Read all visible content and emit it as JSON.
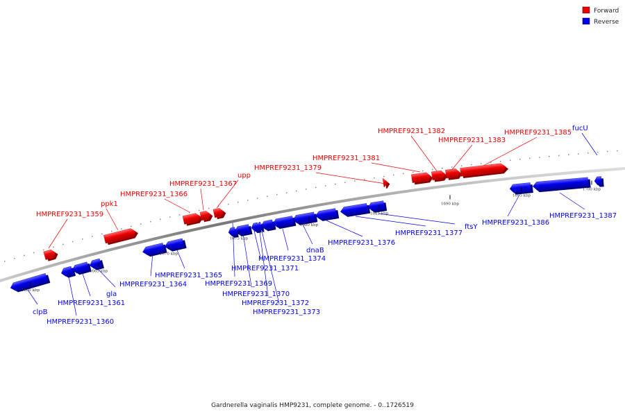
{
  "legend": {
    "forward": {
      "label": "Forward",
      "color": "#ee0000"
    },
    "reverse": {
      "label": "Reverse",
      "color": "#0000ee"
    }
  },
  "caption": "Gardnerella vaginalis HMP9231, complete genome. - 0..1726519",
  "ticks": [
    {
      "label": "1660 kbp"
    },
    {
      "label": "1665 kbp"
    },
    {
      "label": "1670 kbp"
    },
    {
      "label": "1675 kbp"
    },
    {
      "label": "1680 kbp"
    },
    {
      "label": "1685 kbp"
    },
    {
      "label": "1690 kbp"
    },
    {
      "label": "1695 kbp"
    },
    {
      "label": "1700 kbp"
    }
  ],
  "genes": [
    {
      "label": "HMPREF9231_1359",
      "strand": "forward"
    },
    {
      "label": "ppk1",
      "strand": "forward"
    },
    {
      "label": "HMPREF9231_1366",
      "strand": "forward"
    },
    {
      "label": "HMPREF9231_1367",
      "strand": "forward"
    },
    {
      "label": "upp",
      "strand": "forward"
    },
    {
      "label": "HMPREF9231_1379",
      "strand": "forward"
    },
    {
      "label": "HMPREF9231_1381",
      "strand": "forward"
    },
    {
      "label": "HMPREF9231_1382",
      "strand": "forward"
    },
    {
      "label": "HMPREF9231_1383",
      "strand": "forward"
    },
    {
      "label": "HMPREF9231_1385",
      "strand": "forward"
    },
    {
      "label": "fucU",
      "strand": "reverse"
    },
    {
      "label": "clpB",
      "strand": "reverse"
    },
    {
      "label": "HMPREF9231_1360",
      "strand": "reverse"
    },
    {
      "label": "HMPREF9231_1361",
      "strand": "reverse"
    },
    {
      "label": "gla",
      "strand": "reverse"
    },
    {
      "label": "HMPREF9231_1364",
      "strand": "reverse"
    },
    {
      "label": "HMPREF9231_1365",
      "strand": "reverse"
    },
    {
      "label": "HMPREF9231_1369",
      "strand": "reverse"
    },
    {
      "label": "HMPREF9231_1370",
      "strand": "reverse"
    },
    {
      "label": "HMPREF9231_1371",
      "strand": "reverse"
    },
    {
      "label": "HMPREF9231_1372",
      "strand": "reverse"
    },
    {
      "label": "HMPREF9231_1373",
      "strand": "reverse"
    },
    {
      "label": "HMPREF9231_1374",
      "strand": "reverse"
    },
    {
      "label": "dnaB",
      "strand": "reverse"
    },
    {
      "label": "HMPREF9231_1376",
      "strand": "reverse"
    },
    {
      "label": "HMPREF9231_1377",
      "strand": "reverse"
    },
    {
      "label": "ftsY",
      "strand": "reverse"
    },
    {
      "label": "HMPREF9231_1386",
      "strand": "reverse"
    },
    {
      "label": "HMPREF9231_1387",
      "strand": "reverse"
    }
  ]
}
